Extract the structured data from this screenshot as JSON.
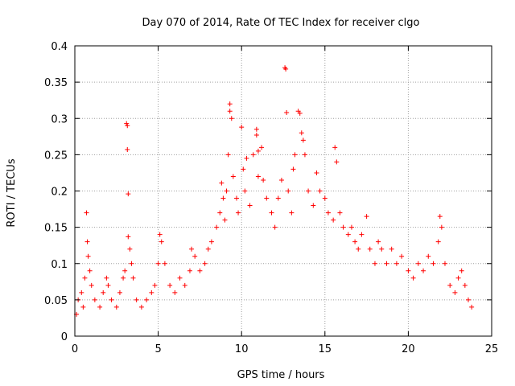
{
  "chart_data": {
    "type": "scatter",
    "title": "Day 070 of 2014, Rate Of TEC Index for receiver clgo",
    "xlabel": "GPS time / hours",
    "ylabel": "ROTI / TECUs",
    "xlim": [
      0,
      25
    ],
    "ylim": [
      0,
      0.4
    ],
    "x_ticks": [
      0,
      5,
      10,
      15,
      20,
      25
    ],
    "y_ticks": [
      0,
      0.05,
      0.1,
      0.15,
      0.2,
      0.25,
      0.3,
      0.35,
      0.4
    ],
    "x_tick_labels": [
      "0",
      "5",
      "10",
      "15",
      "20",
      "25"
    ],
    "y_tick_labels": [
      "0",
      "0.05",
      "0.1",
      "0.15",
      "0.2",
      "0.25",
      "0.3",
      "0.35",
      "0.4"
    ],
    "grid": true,
    "legend": "none",
    "marker": "+",
    "marker_color": "#ff0000",
    "grid_color": "#a0a0a0",
    "x_range_of_data": [
      0,
      23.8
    ],
    "series": [
      {
        "name": "ROTI",
        "points": [
          [
            0.1,
            0.03
          ],
          [
            0.2,
            0.05
          ],
          [
            0.4,
            0.06
          ],
          [
            0.5,
            0.04
          ],
          [
            0.6,
            0.08
          ],
          [
            0.7,
            0.17
          ],
          [
            0.75,
            0.13
          ],
          [
            0.8,
            0.11
          ],
          [
            0.9,
            0.09
          ],
          [
            1.0,
            0.07
          ],
          [
            1.2,
            0.05
          ],
          [
            1.5,
            0.04
          ],
          [
            1.7,
            0.06
          ],
          [
            1.9,
            0.08
          ],
          [
            2.0,
            0.07
          ],
          [
            2.2,
            0.05
          ],
          [
            2.5,
            0.04
          ],
          [
            2.7,
            0.06
          ],
          [
            2.9,
            0.08
          ],
          [
            3.0,
            0.09
          ],
          [
            3.1,
            0.293
          ],
          [
            3.15,
            0.29
          ],
          [
            3.15,
            0.257
          ],
          [
            3.2,
            0.196
          ],
          [
            3.2,
            0.137
          ],
          [
            3.3,
            0.12
          ],
          [
            3.4,
            0.1
          ],
          [
            3.5,
            0.08
          ],
          [
            3.7,
            0.05
          ],
          [
            4.0,
            0.04
          ],
          [
            4.3,
            0.05
          ],
          [
            4.6,
            0.06
          ],
          [
            4.8,
            0.07
          ],
          [
            5.0,
            0.1
          ],
          [
            5.1,
            0.14
          ],
          [
            5.2,
            0.13
          ],
          [
            5.4,
            0.1
          ],
          [
            5.7,
            0.07
          ],
          [
            6.0,
            0.06
          ],
          [
            6.3,
            0.08
          ],
          [
            6.6,
            0.07
          ],
          [
            6.9,
            0.09
          ],
          [
            7.0,
            0.12
          ],
          [
            7.2,
            0.11
          ],
          [
            7.5,
            0.09
          ],
          [
            7.8,
            0.1
          ],
          [
            8.0,
            0.12
          ],
          [
            8.2,
            0.13
          ],
          [
            8.5,
            0.15
          ],
          [
            8.7,
            0.17
          ],
          [
            8.8,
            0.211
          ],
          [
            8.9,
            0.19
          ],
          [
            9.0,
            0.16
          ],
          [
            9.1,
            0.2
          ],
          [
            9.2,
            0.25
          ],
          [
            9.3,
            0.32
          ],
          [
            9.3,
            0.31
          ],
          [
            9.4,
            0.3
          ],
          [
            9.5,
            0.22
          ],
          [
            9.7,
            0.19
          ],
          [
            9.8,
            0.17
          ],
          [
            10.0,
            0.288
          ],
          [
            10.1,
            0.23
          ],
          [
            10.2,
            0.2
          ],
          [
            10.3,
            0.245
          ],
          [
            10.5,
            0.18
          ],
          [
            10.7,
            0.25
          ],
          [
            10.9,
            0.285
          ],
          [
            10.9,
            0.277
          ],
          [
            11.0,
            0.255
          ],
          [
            11.0,
            0.22
          ],
          [
            11.2,
            0.26
          ],
          [
            11.3,
            0.215
          ],
          [
            11.5,
            0.19
          ],
          [
            11.8,
            0.17
          ],
          [
            12.0,
            0.15
          ],
          [
            12.2,
            0.19
          ],
          [
            12.4,
            0.215
          ],
          [
            12.6,
            0.37
          ],
          [
            12.65,
            0.368
          ],
          [
            12.7,
            0.308
          ],
          [
            12.8,
            0.2
          ],
          [
            13.0,
            0.17
          ],
          [
            13.1,
            0.23
          ],
          [
            13.2,
            0.25
          ],
          [
            13.4,
            0.31
          ],
          [
            13.5,
            0.307
          ],
          [
            13.6,
            0.28
          ],
          [
            13.7,
            0.27
          ],
          [
            13.8,
            0.25
          ],
          [
            14.0,
            0.2
          ],
          [
            14.3,
            0.18
          ],
          [
            14.5,
            0.225
          ],
          [
            14.7,
            0.2
          ],
          [
            15.0,
            0.19
          ],
          [
            15.2,
            0.17
          ],
          [
            15.5,
            0.16
          ],
          [
            15.6,
            0.26
          ],
          [
            15.7,
            0.24
          ],
          [
            15.9,
            0.17
          ],
          [
            16.1,
            0.15
          ],
          [
            16.4,
            0.14
          ],
          [
            16.6,
            0.15
          ],
          [
            16.8,
            0.13
          ],
          [
            17.0,
            0.12
          ],
          [
            17.2,
            0.14
          ],
          [
            17.5,
            0.165
          ],
          [
            17.7,
            0.12
          ],
          [
            18.0,
            0.1
          ],
          [
            18.2,
            0.13
          ],
          [
            18.4,
            0.12
          ],
          [
            18.7,
            0.1
          ],
          [
            19.0,
            0.12
          ],
          [
            19.3,
            0.1
          ],
          [
            19.6,
            0.11
          ],
          [
            20.0,
            0.09
          ],
          [
            20.3,
            0.08
          ],
          [
            20.6,
            0.1
          ],
          [
            20.9,
            0.09
          ],
          [
            21.2,
            0.11
          ],
          [
            21.5,
            0.1
          ],
          [
            21.8,
            0.13
          ],
          [
            21.9,
            0.165
          ],
          [
            22.0,
            0.15
          ],
          [
            22.2,
            0.1
          ],
          [
            22.5,
            0.07
          ],
          [
            22.8,
            0.06
          ],
          [
            23.0,
            0.08
          ],
          [
            23.2,
            0.09
          ],
          [
            23.4,
            0.07
          ],
          [
            23.6,
            0.05
          ],
          [
            23.8,
            0.04
          ]
        ]
      }
    ]
  }
}
